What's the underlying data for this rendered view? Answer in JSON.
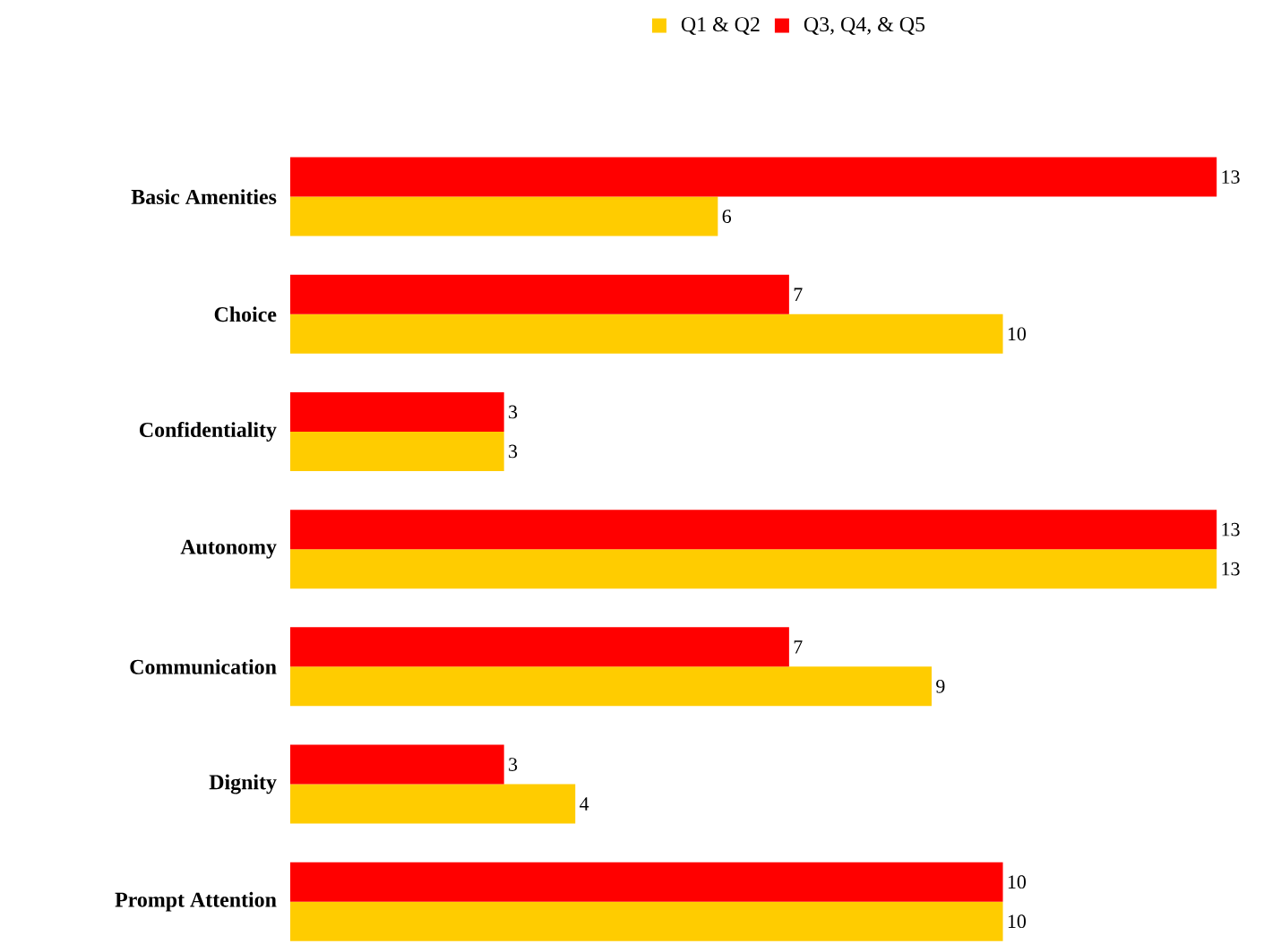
{
  "chart_data": {
    "type": "bar",
    "orientation": "horizontal",
    "legend": "top",
    "categories": [
      "Basic Amenities",
      "Choice",
      "Confidentiality",
      "Autonomy",
      "Communication",
      "Dignity",
      "Prompt Attention"
    ],
    "series": [
      {
        "name": "Q1 & Q2",
        "color": "#ffcc00",
        "values": [
          6,
          10,
          3,
          13,
          9,
          4,
          10
        ]
      },
      {
        "name": "Q3, Q4, & Q5",
        "color": "#ff0000",
        "values": [
          13,
          7,
          3,
          13,
          7,
          3,
          10
        ]
      }
    ],
    "data_labels": true
  }
}
